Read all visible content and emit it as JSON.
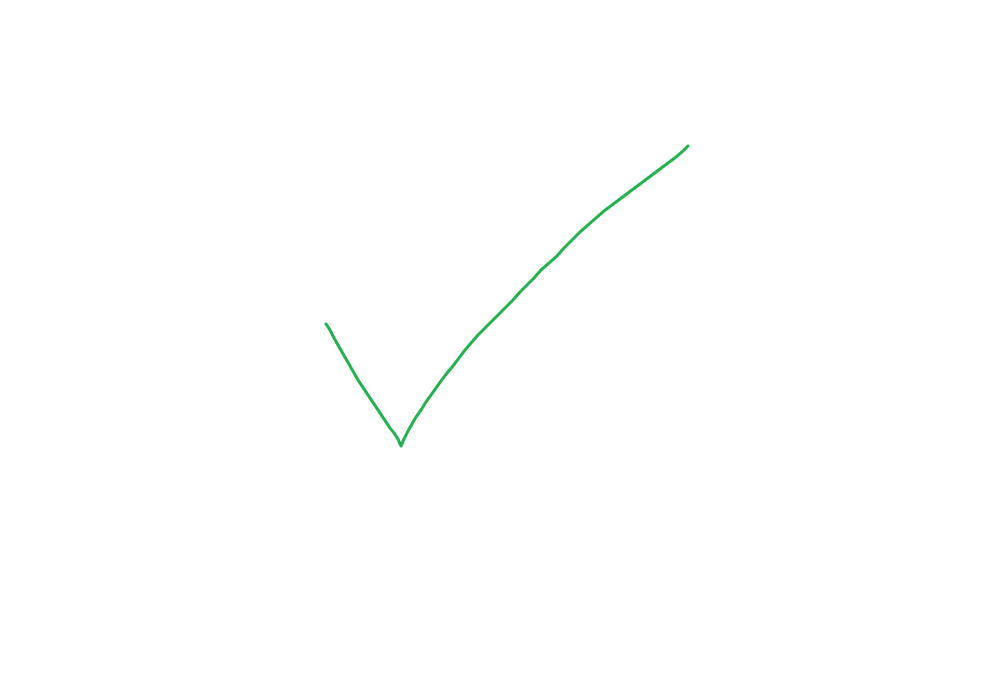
{
  "drawing": {
    "stroke_color": "#22b14c",
    "background_color": "#ffffff",
    "shape": "check-mark"
  }
}
